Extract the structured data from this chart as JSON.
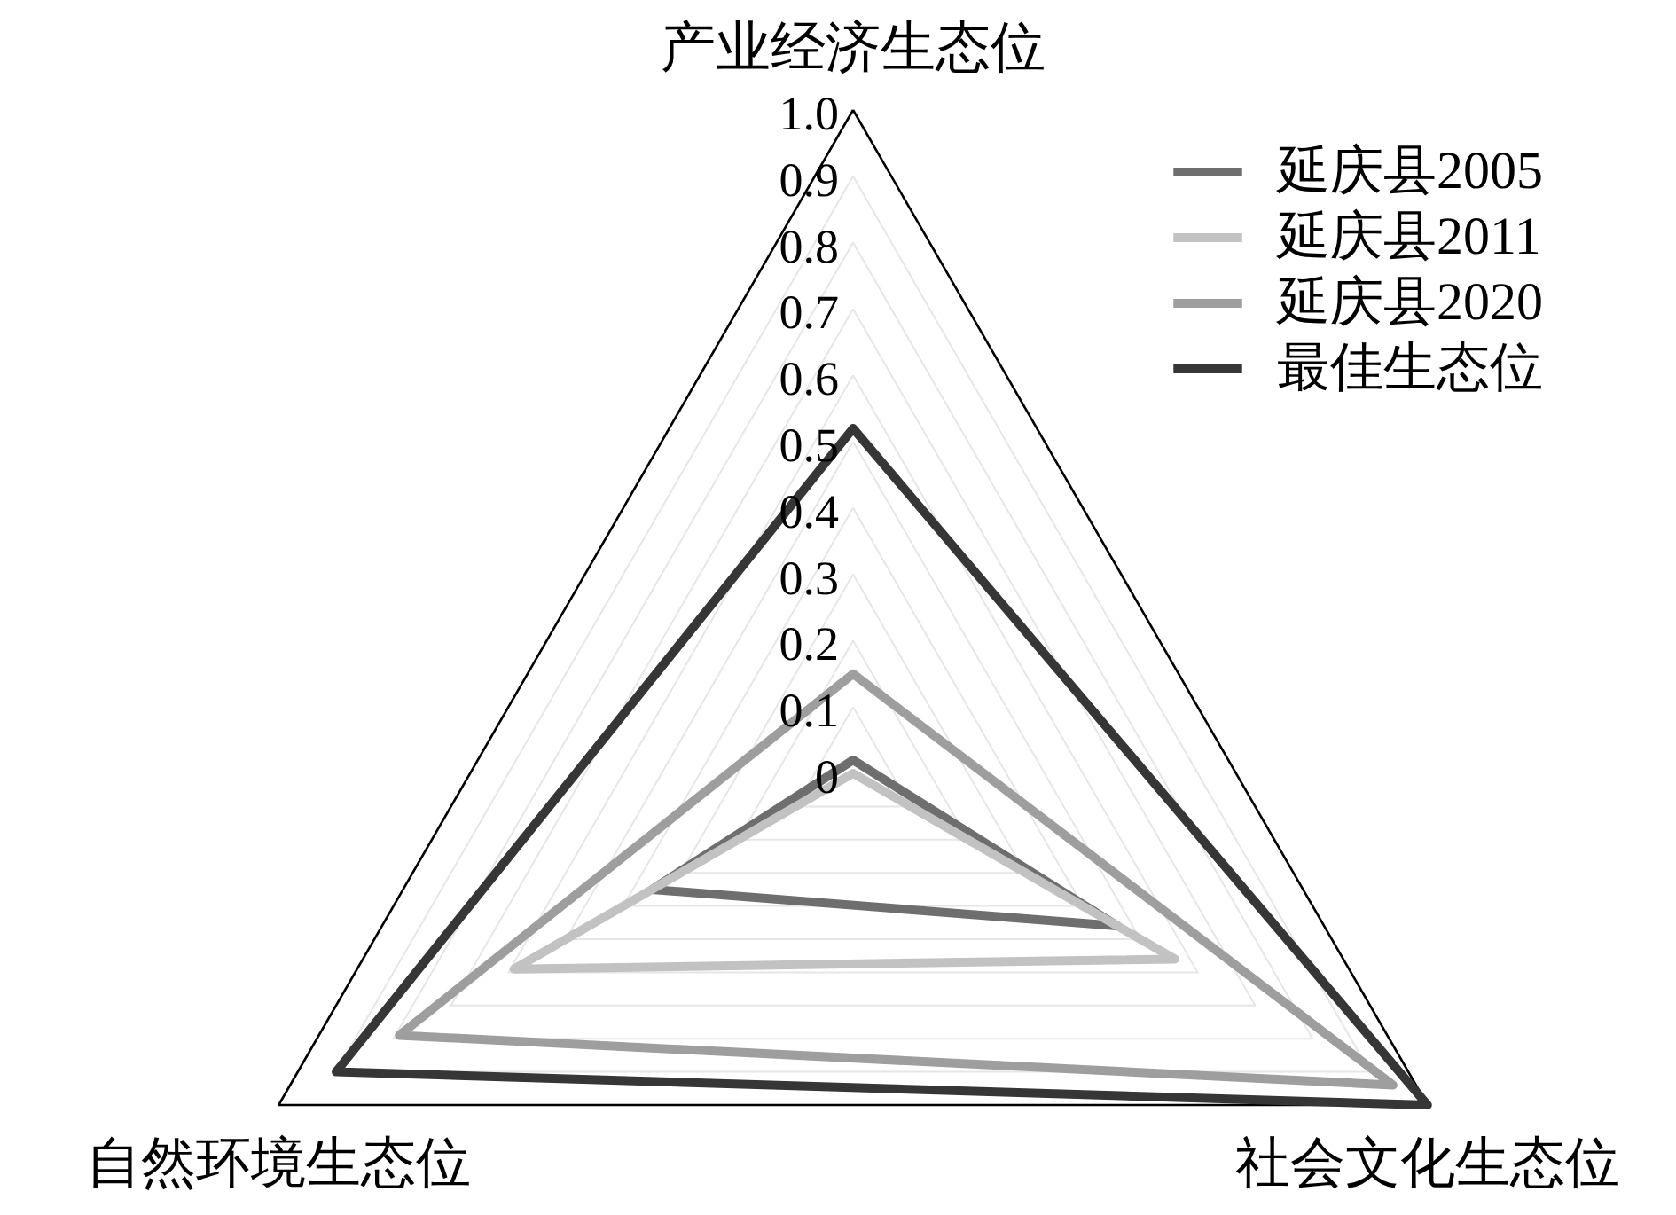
{
  "chart_data": {
    "type": "radar",
    "categories": [
      "产业经济生态位",
      "社会文化生态位",
      "自然环境生态位"
    ],
    "series": [
      {
        "name": "延庆县2005",
        "color": "#6e6e6e",
        "values": [
          0.02,
          0.46,
          0.35
        ]
      },
      {
        "name": "延庆县2011",
        "color": "#c2c2c2",
        "values": [
          0,
          0.56,
          0.59
        ]
      },
      {
        "name": "延庆县2020",
        "color": "#9e9e9e",
        "values": [
          0.15,
          0.94,
          0.79
        ]
      },
      {
        "name": "最佳生态位",
        "color": "#363636",
        "values": [
          0.52,
          1,
          0.9
        ]
      }
    ],
    "ylim": [
      0,
      1
    ],
    "yticks": [
      0,
      0.1,
      0.2,
      0.3,
      0.4,
      0.5,
      0.6,
      0.7,
      0.8,
      0.9,
      {
        "value": 1,
        "label": "1.0"
      }
    ],
    "grid": true,
    "legend": "top right"
  }
}
